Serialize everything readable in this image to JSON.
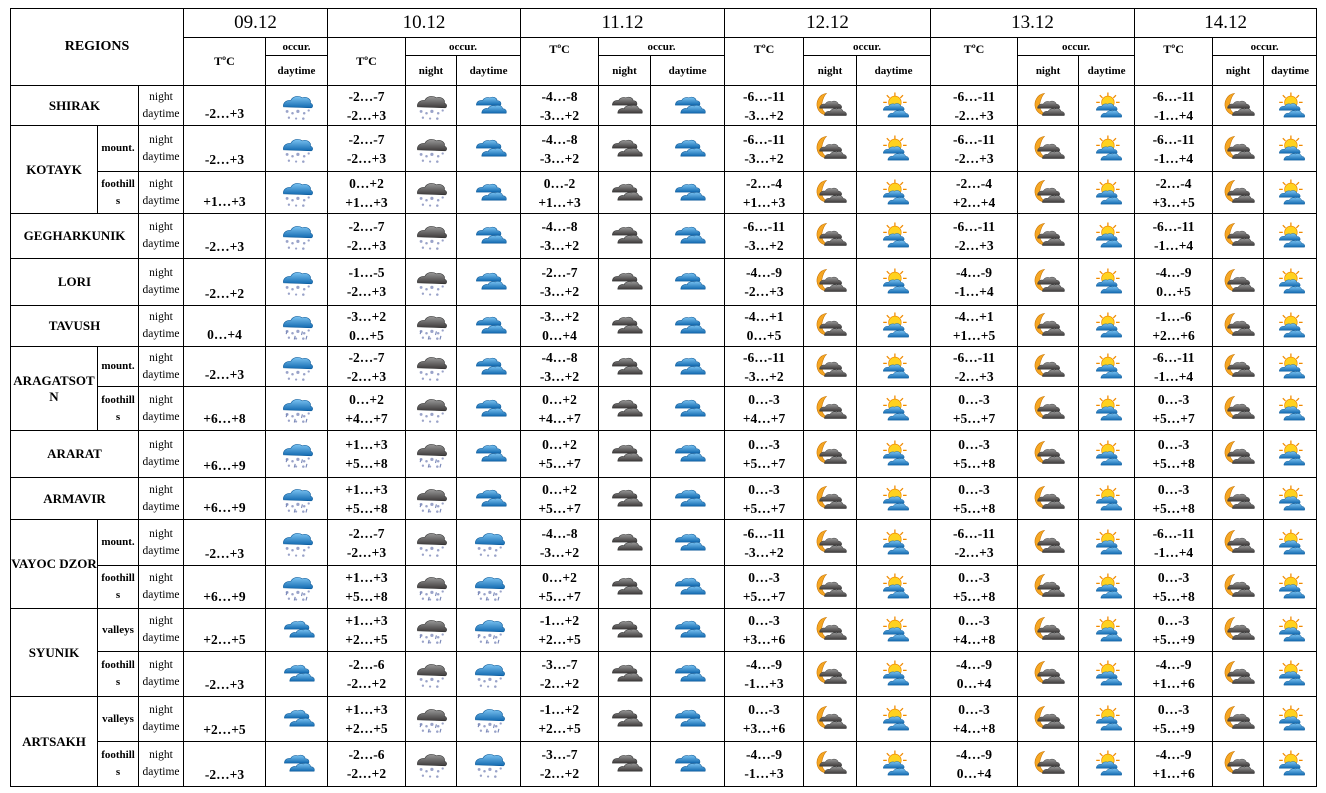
{
  "header": {
    "regions_label": "REGIONS",
    "temp_label": "TºC",
    "occur_label": "occur.",
    "night_label": "night",
    "daytime_label": "daytime",
    "dates": [
      "09.12",
      "10.12",
      "11.12",
      "12.12",
      "13.12",
      "14.12"
    ]
  },
  "icons": {
    "snow": "snow-cloud",
    "rainsnow": "rain-snow-cloud",
    "clouds": "blue-clouds",
    "dsnow": "dark-snow-cloud",
    "drainsnow": "dark-rain-snow-cloud",
    "dclouds": "dark-clouds",
    "moon": "moon-clouds",
    "sun": "sun-clouds"
  },
  "regions": [
    {
      "name": "SHIRAK",
      "subs": [
        {
          "label": null,
          "t": [
            "-2…+3",
            [
              "-2…-7",
              "-2…+3"
            ],
            [
              "-4…-8",
              "-3…+2"
            ],
            [
              "-6…-11",
              "-3…+2"
            ],
            [
              "-6…-11",
              "-2…+3"
            ],
            [
              "-6…-11",
              "-1…+4"
            ]
          ],
          "i": [
            "snow",
            "dsnow",
            "clouds",
            "dclouds",
            "clouds",
            "moon",
            "sun",
            "moon",
            "sun",
            "moon",
            "sun"
          ]
        }
      ]
    },
    {
      "name": "KOTAYK",
      "subs": [
        {
          "label": "mount.",
          "t": [
            "-2…+3",
            [
              "-2…-7",
              "-2…+3"
            ],
            [
              "-4…-8",
              "-3…+2"
            ],
            [
              "-6…-11",
              "-3…+2"
            ],
            [
              "-6…-11",
              "-2…+3"
            ],
            [
              "-6…-11",
              "-1…+4"
            ]
          ],
          "i": [
            "snow",
            "dsnow",
            "clouds",
            "dclouds",
            "clouds",
            "moon",
            "sun",
            "moon",
            "sun",
            "moon",
            "sun"
          ]
        },
        {
          "label": "foothills",
          "t": [
            "+1…+3",
            [
              "0…+2",
              "+1…+3"
            ],
            [
              "0…-2",
              "+1…+3"
            ],
            [
              "-2…-4",
              "+1…+3"
            ],
            [
              "-2…-4",
              "+2…+4"
            ],
            [
              "-2…-4",
              "+3…+5"
            ]
          ],
          "i": [
            "snow",
            "dsnow",
            "clouds",
            "dclouds",
            "clouds",
            "moon",
            "sun",
            "moon",
            "sun",
            "moon",
            "sun"
          ]
        }
      ]
    },
    {
      "name": "GEGHARKUNIK",
      "subs": [
        {
          "label": null,
          "t": [
            "-2…+3",
            [
              "-2…-7",
              "-2…+3"
            ],
            [
              "-4…-8",
              "-3…+2"
            ],
            [
              "-6…-11",
              "-3…+2"
            ],
            [
              "-6…-11",
              "-2…+3"
            ],
            [
              "-6…-11",
              "-1…+4"
            ]
          ],
          "i": [
            "snow",
            "dsnow",
            "clouds",
            "dclouds",
            "clouds",
            "moon",
            "sun",
            "moon",
            "sun",
            "moon",
            "sun"
          ]
        }
      ]
    },
    {
      "name": "LORI",
      "subs": [
        {
          "label": null,
          "t": [
            "-2…+2",
            [
              "-1…-5",
              "-2…+3"
            ],
            [
              "-2…-7",
              "-3…+2"
            ],
            [
              "-4…-9",
              "-2…+3"
            ],
            [
              "-4…-9",
              "-1…+4"
            ],
            [
              "-4…-9",
              "0…+5"
            ]
          ],
          "i": [
            "snow",
            "dsnow",
            "clouds",
            "dclouds",
            "clouds",
            "moon",
            "sun",
            "moon",
            "sun",
            "moon",
            "sun"
          ]
        }
      ]
    },
    {
      "name": "TAVUSH",
      "subs": [
        {
          "label": null,
          "t": [
            "0…+4",
            [
              "-3…+2",
              "0…+5"
            ],
            [
              "-3…+2",
              "0…+4"
            ],
            [
              "-4…+1",
              "0…+5"
            ],
            [
              "-4…+1",
              "+1…+5"
            ],
            [
              "-1…-6",
              "+2…+6"
            ]
          ],
          "i": [
            "rainsnow",
            "drainsnow",
            "clouds",
            "dclouds",
            "clouds",
            "moon",
            "sun",
            "moon",
            "sun",
            "moon",
            "sun"
          ]
        }
      ]
    },
    {
      "name": "ARAGATSOTN",
      "subs": [
        {
          "label": "mount.",
          "t": [
            "-2…+3",
            [
              "-2…-7",
              "-2…+3"
            ],
            [
              "-4…-8",
              "-3…+2"
            ],
            [
              "-6…-11",
              "-3…+2"
            ],
            [
              "-6…-11",
              "-2…+3"
            ],
            [
              "-6…-11",
              "-1…+4"
            ]
          ],
          "i": [
            "snow",
            "dsnow",
            "clouds",
            "dclouds",
            "clouds",
            "moon",
            "sun",
            "moon",
            "sun",
            "moon",
            "sun"
          ]
        },
        {
          "label": "foothills",
          "t": [
            "+6…+8",
            [
              "0…+2",
              "+4…+7"
            ],
            [
              "0…+2",
              "+4…+7"
            ],
            [
              "0…-3",
              "+4…+7"
            ],
            [
              "0…-3",
              "+5…+7"
            ],
            [
              "0…-3",
              "+5…+7"
            ]
          ],
          "i": [
            "rainsnow",
            "dsnow",
            "clouds",
            "dclouds",
            "clouds",
            "moon",
            "sun",
            "moon",
            "sun",
            "moon",
            "sun"
          ]
        }
      ]
    },
    {
      "name": "ARARAT",
      "subs": [
        {
          "label": null,
          "t": [
            "+6…+9",
            [
              "+1…+3",
              "+5…+8"
            ],
            [
              "0…+2",
              "+5…+7"
            ],
            [
              "0…-3",
              "+5…+7"
            ],
            [
              "0…-3",
              "+5…+8"
            ],
            [
              "0…-3",
              "+5…+8"
            ]
          ],
          "i": [
            "rainsnow",
            "drainsnow",
            "clouds",
            "dclouds",
            "clouds",
            "moon",
            "sun",
            "moon",
            "sun",
            "moon",
            "sun"
          ]
        }
      ]
    },
    {
      "name": "ARMAVIR",
      "subs": [
        {
          "label": null,
          "t": [
            "+6…+9",
            [
              "+1…+3",
              "+5…+8"
            ],
            [
              "0…+2",
              "+5…+7"
            ],
            [
              "0…-3",
              "+5…+7"
            ],
            [
              "0…-3",
              "+5…+8"
            ],
            [
              "0…-3",
              "+5…+8"
            ]
          ],
          "i": [
            "rainsnow",
            "drainsnow",
            "clouds",
            "dclouds",
            "clouds",
            "moon",
            "sun",
            "moon",
            "sun",
            "moon",
            "sun"
          ]
        }
      ]
    },
    {
      "name": "VAYOC DZOR",
      "subs": [
        {
          "label": "mount.",
          "t": [
            "-2…+3",
            [
              "-2…-7",
              "-2…+3"
            ],
            [
              "-4…-8",
              "-3…+2"
            ],
            [
              "-6…-11",
              "-3…+2"
            ],
            [
              "-6…-11",
              "-2…+3"
            ],
            [
              "-6…-11",
              "-1…+4"
            ]
          ],
          "i": [
            "snow",
            "dsnow",
            "snow",
            "dclouds",
            "clouds",
            "moon",
            "sun",
            "moon",
            "sun",
            "moon",
            "sun"
          ]
        },
        {
          "label": "foothills",
          "t": [
            "+6…+9",
            [
              "+1…+3",
              "+5…+8"
            ],
            [
              "0…+2",
              "+5…+7"
            ],
            [
              "0…-3",
              "+5…+7"
            ],
            [
              "0…-3",
              "+5…+8"
            ],
            [
              "0…-3",
              "+5…+8"
            ]
          ],
          "i": [
            "rainsnow",
            "drainsnow",
            "rainsnow",
            "dclouds",
            "clouds",
            "moon",
            "sun",
            "moon",
            "sun",
            "moon",
            "sun"
          ]
        }
      ]
    },
    {
      "name": "SYUNIK",
      "subs": [
        {
          "label": "valleys",
          "t": [
            "+2…+5",
            [
              "+1…+3",
              "+2…+5"
            ],
            [
              "-1…+2",
              "+2…+5"
            ],
            [
              "0…-3",
              "+3…+6"
            ],
            [
              "0…-3",
              "+4…+8"
            ],
            [
              "0…-3",
              "+5…+9"
            ]
          ],
          "i": [
            "clouds",
            "drainsnow",
            "rainsnow",
            "dclouds",
            "clouds",
            "moon",
            "sun",
            "moon",
            "sun",
            "moon",
            "sun"
          ]
        },
        {
          "label": "foothills",
          "t": [
            "-2…+3",
            [
              "-2…-6",
              "-2…+2"
            ],
            [
              "-3…-7",
              "-2…+2"
            ],
            [
              "-4…-9",
              "-1…+3"
            ],
            [
              "-4…-9",
              "0…+4"
            ],
            [
              "-4…-9",
              "+1…+6"
            ]
          ],
          "i": [
            "clouds",
            "dsnow",
            "snow",
            "dclouds",
            "clouds",
            "moon",
            "sun",
            "moon",
            "sun",
            "moon",
            "sun"
          ]
        }
      ]
    },
    {
      "name": "ARTSAKH",
      "subs": [
        {
          "label": "valleys",
          "t": [
            "+2…+5",
            [
              "+1…+3",
              "+2…+5"
            ],
            [
              "-1…+2",
              "+2…+5"
            ],
            [
              "0…-3",
              "+3…+6"
            ],
            [
              "0…-3",
              "+4…+8"
            ],
            [
              "0…-3",
              "+5…+9"
            ]
          ],
          "i": [
            "clouds",
            "drainsnow",
            "rainsnow",
            "dclouds",
            "clouds",
            "moon",
            "sun",
            "moon",
            "sun",
            "moon",
            "sun"
          ]
        },
        {
          "label": "foothills",
          "t": [
            "-2…+3",
            [
              "-2…-6",
              "-2…+2"
            ],
            [
              "-3…-7",
              "-2…+2"
            ],
            [
              "-4…-9",
              "-1…+3"
            ],
            [
              "-4…-9",
              "0…+4"
            ],
            [
              "-4…-9",
              "+1…+6"
            ]
          ],
          "i": [
            "clouds",
            "dsnow",
            "snow",
            "dclouds",
            "clouds",
            "moon",
            "sun",
            "moon",
            "sun",
            "moon",
            "sun"
          ]
        }
      ]
    }
  ]
}
